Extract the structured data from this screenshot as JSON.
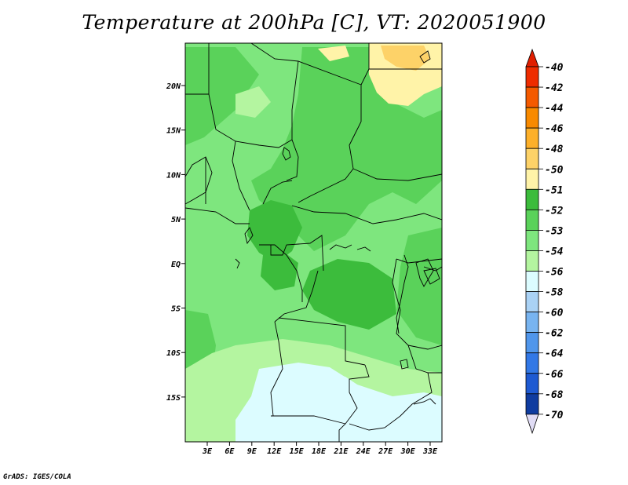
{
  "title": "Temperature at 200hPa [C], VT: 2020051900",
  "credit": "GrADS: IGES/COLA",
  "lat_labels": [
    "20N",
    "15N",
    "10N",
    "5N",
    "EQ",
    "5S",
    "10S",
    "15S"
  ],
  "lon_labels": [
    "3E",
    "6E",
    "9E",
    "12E",
    "15E",
    "18E",
    "21E",
    "24E",
    "27E",
    "30E",
    "33E"
  ],
  "colorbar": {
    "labels": [
      "-40",
      "-42",
      "-44",
      "-46",
      "-48",
      "-50",
      "-51",
      "-52",
      "-53",
      "-54",
      "-56",
      "-58",
      "-60",
      "-62",
      "-64",
      "-66",
      "-68",
      "-70"
    ],
    "colors": [
      "#ee2c00",
      "#f45a00",
      "#f88a00",
      "#fdb02a",
      "#fdd268",
      "#fff3a8",
      "#3cbc3c",
      "#5ad25a",
      "#7ee67e",
      "#b4f5a0",
      "#dcfcff",
      "#aad2f5",
      "#78b4f0",
      "#5096eb",
      "#3278e6",
      "#1e5ad2",
      "#0f3ca0",
      "#0a1464"
    ],
    "top_arrow_color": "#e01e00",
    "bottom_arrow_color": "#e0dcf5"
  },
  "map_colors": {
    "base": "#7ee67e",
    "darker": "#5ad25a",
    "darkest": "#3cbc3c",
    "light": "#b4f5a0",
    "pale": "#dcfcff",
    "yellow": "#fff3a8",
    "orange": "#fdd268"
  }
}
